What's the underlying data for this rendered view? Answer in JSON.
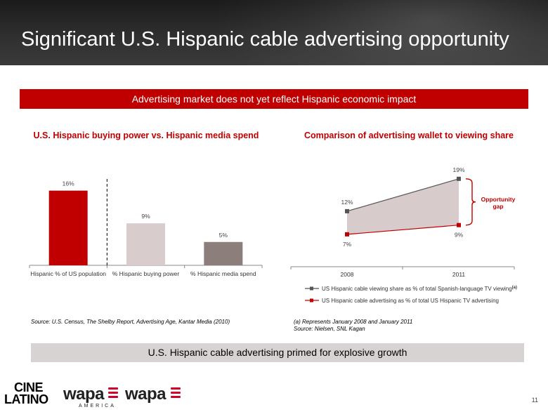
{
  "header": {
    "title": "Significant U.S. Hispanic cable advertising opportunity"
  },
  "banner_top": "Advertising market does not yet reflect Hispanic economic impact",
  "banner_bottom": "U.S. Hispanic cable advertising primed for explosive growth",
  "page_number": "11",
  "colors": {
    "red": "#c00000",
    "light": "#d9cccc",
    "taupe": "#8c7f7b",
    "line_dark": "#555555",
    "area": "#d7cbcb",
    "header_bg": "#2a2a2a"
  },
  "chart_data": [
    {
      "type": "bar",
      "title": "U.S. Hispanic buying power vs. Hispanic media spend",
      "categories": [
        "Hispanic % of US population",
        "% Hispanic buying power",
        "% Hispanic media spend"
      ],
      "values": [
        16,
        9,
        5
      ],
      "value_labels": [
        "16%",
        "9%",
        "5%"
      ],
      "bar_colors": [
        "#c00000",
        "#d9cccc",
        "#8c7f7b"
      ],
      "ylim": [
        0,
        20
      ],
      "divider_after_index": 0
    },
    {
      "type": "area",
      "title": "Comparison of advertising wallet to viewing share",
      "x": [
        "2008",
        "2011"
      ],
      "series": [
        {
          "name": "US Hispanic cable viewing share as % of total Spanish-language TV viewing",
          "superscript": "(a)",
          "values": [
            12,
            19
          ],
          "labels": [
            "12%",
            "19%"
          ],
          "color": "#555555"
        },
        {
          "name": "US Hispanic cable advertising as % of total US Hispanic TV advertising",
          "values": [
            7,
            9
          ],
          "labels": [
            "7%",
            "9%"
          ],
          "color": "#c00000"
        }
      ],
      "ylim": [
        0,
        22
      ],
      "annotation": {
        "lines": [
          "Opportunity",
          "gap"
        ]
      }
    }
  ],
  "sources": {
    "left": "Source: U.S. Census, The Shelby Report, Advertising Age, Kantar Media (2010)",
    "right_note": "(a) Represents January 2008 and January 2011",
    "right_source": "Source: Nielsen, SNL Kagan"
  },
  "logos": {
    "cine_top": "CINE",
    "cine_bottom": "LATINO",
    "wapa_america": "wapa",
    "america_sub": "AMERICA",
    "wapa": "wapa"
  }
}
